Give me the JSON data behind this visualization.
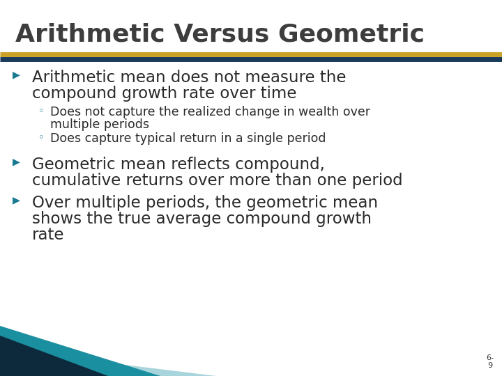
{
  "title": "Arithmetic Versus Geometric",
  "title_color": "#3d3d3d",
  "title_fontsize": 26,
  "bg_color": "#ffffff",
  "header_line1_color": "#c9a227",
  "header_line2_color": "#1a3a5c",
  "bullet_color": "#1a7a90",
  "sub_bullet_color": "#1a7a90",
  "text_color": "#2a2a2a",
  "bullet1_line1": "Arithmetic mean does not measure the",
  "bullet1_line2": "compound growth rate over time",
  "sub1_line1": "Does not capture the realized change in wealth over",
  "sub1_line2": "multiple periods",
  "sub2": "Does capture typical return in a single period",
  "bullet2_line1": "Geometric mean reflects compound,",
  "bullet2_line2": "cumulative returns over more than one period",
  "bullet3_line1": "Over multiple periods, the geometric mean",
  "bullet3_line2": "shows the true average compound growth",
  "bullet3_line3": "rate",
  "footer_teal": "#1a8fa0",
  "footer_dark": "#0d2a3d",
  "footer_light": "#a8d4dc",
  "page_num_color": "#333333"
}
